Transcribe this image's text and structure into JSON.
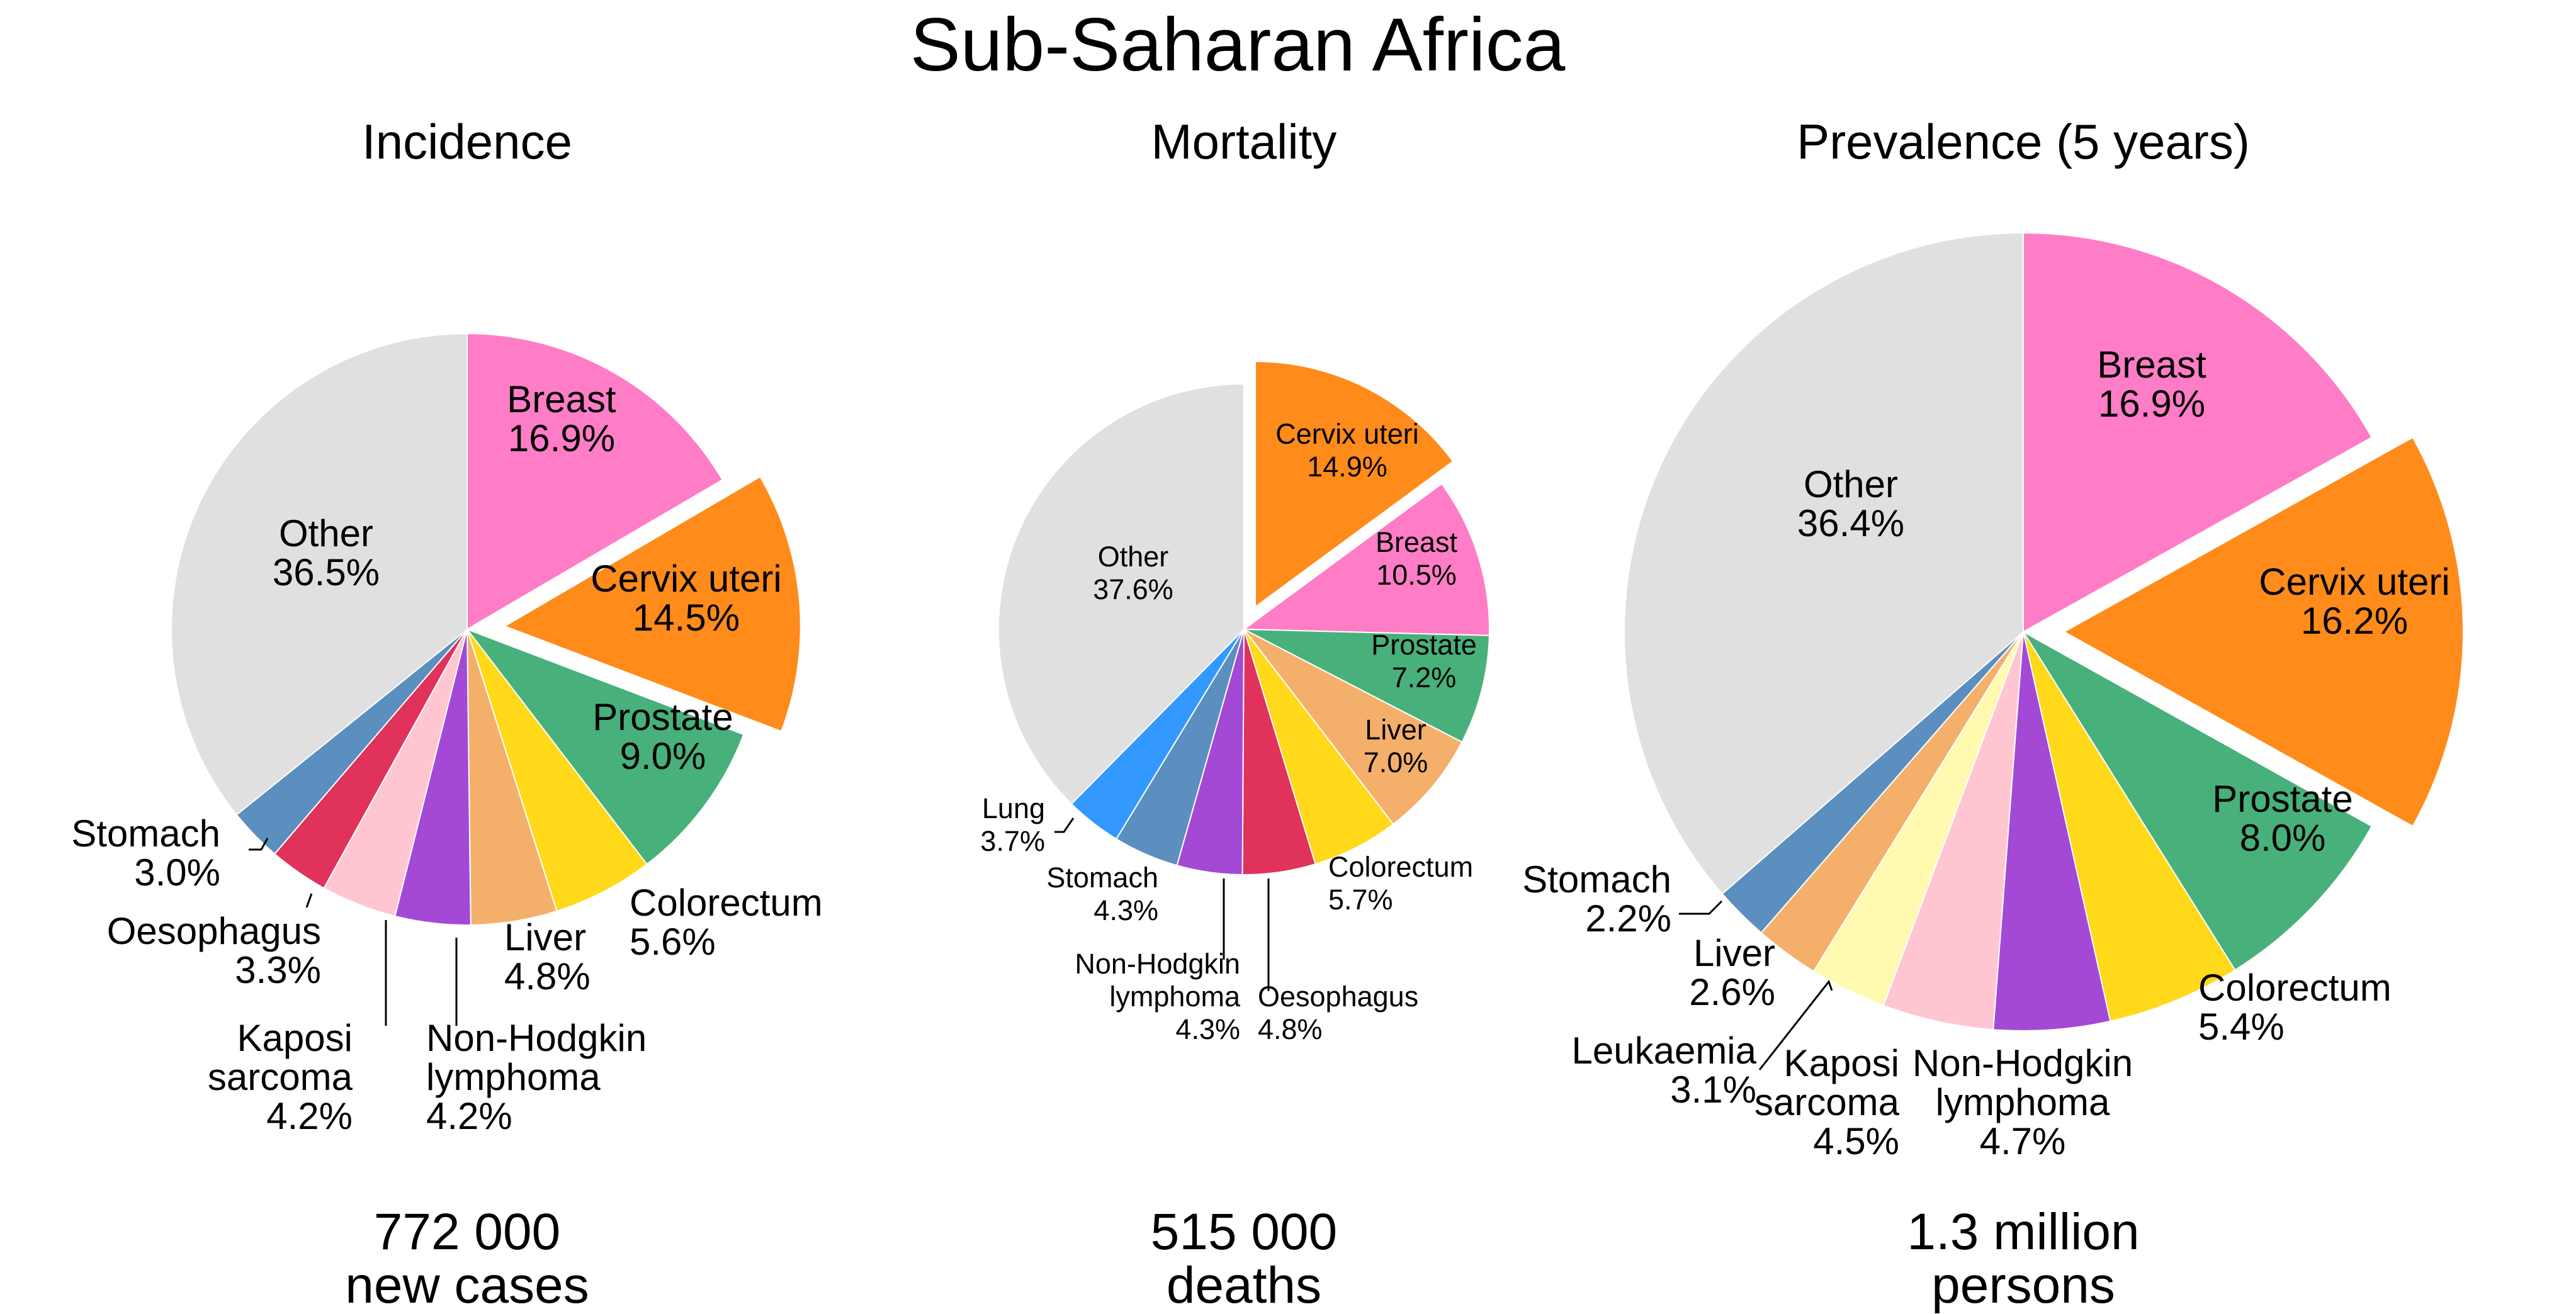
{
  "figure_title": "Sub-Saharan Africa",
  "colors": {
    "Breast": "#ff7dc6",
    "Cervix uteri": "#ff8b1b",
    "Prostate": "#48b07b",
    "Colorectum": "#ffd91a",
    "Liver": "#f4b06a",
    "Non-Hodgkin lymphoma": "#a349d6",
    "Kaposi sarcoma": "#ffc6d2",
    "Oesophagus": "#e0325a",
    "Stomach": "#5b8fbf",
    "Lung": "#3399ff",
    "Leukaemia": "#fffab0",
    "Other": "#e0e0e0"
  },
  "chart_data": [
    {
      "type": "pie",
      "title": "Incidence",
      "total_line1": "772 000",
      "total_line2": "new cases",
      "slices": [
        {
          "name": "Breast",
          "value": 16.9,
          "label": [
            "Breast",
            "16.9%"
          ]
        },
        {
          "name": "Cervix uteri",
          "value": 14.5,
          "label": [
            "Cervix uteri",
            "14.5%"
          ],
          "exploded": true
        },
        {
          "name": "Prostate",
          "value": 9.0,
          "label": [
            "Prostate",
            "9.0%"
          ]
        },
        {
          "name": "Colorectum",
          "value": 5.6,
          "label": [
            "Colorectum",
            "5.6%"
          ]
        },
        {
          "name": "Liver",
          "value": 4.8,
          "label": [
            "Liver",
            "4.8%"
          ]
        },
        {
          "name": "Non-Hodgkin lymphoma",
          "value": 4.2,
          "label": [
            "Non-Hodgkin",
            "lymphoma",
            "4.2%"
          ]
        },
        {
          "name": "Kaposi sarcoma",
          "value": 4.2,
          "label": [
            "Kaposi",
            "sarcoma",
            "4.2%"
          ]
        },
        {
          "name": "Oesophagus",
          "value": 3.3,
          "label": [
            "Oesophagus",
            "3.3%"
          ]
        },
        {
          "name": "Stomach",
          "value": 3.0,
          "label": [
            "Stomach",
            "3.0%"
          ]
        },
        {
          "name": "Other",
          "value": 36.5,
          "label": [
            "Other",
            "36.5%"
          ]
        }
      ]
    },
    {
      "type": "pie",
      "title": "Mortality",
      "total_line1": "515 000",
      "total_line2": "deaths",
      "slices": [
        {
          "name": "Cervix uteri",
          "value": 14.9,
          "label": [
            "Cervix uteri",
            "14.9%"
          ],
          "exploded": true
        },
        {
          "name": "Breast",
          "value": 10.5,
          "label": [
            "Breast",
            "10.5%"
          ]
        },
        {
          "name": "Prostate",
          "value": 7.2,
          "label": [
            "Prostate",
            "7.2%"
          ]
        },
        {
          "name": "Liver",
          "value": 7.0,
          "label": [
            "Liver",
            "7.0%"
          ]
        },
        {
          "name": "Colorectum",
          "value": 5.7,
          "label": [
            "Colorectum",
            "5.7%"
          ]
        },
        {
          "name": "Oesophagus",
          "value": 4.8,
          "label": [
            "Oesophagus",
            "4.8%"
          ]
        },
        {
          "name": "Non-Hodgkin lymphoma",
          "value": 4.3,
          "label": [
            "Non-Hodgkin",
            "lymphoma",
            "4.3%"
          ]
        },
        {
          "name": "Stomach",
          "value": 4.3,
          "label": [
            "Stomach",
            "4.3%"
          ]
        },
        {
          "name": "Lung",
          "value": 3.7,
          "label": [
            "Lung",
            "3.7%"
          ]
        },
        {
          "name": "Other",
          "value": 37.6,
          "label": [
            "Other",
            "37.6%"
          ]
        }
      ]
    },
    {
      "type": "pie",
      "title": "Prevalence (5 years)",
      "total_line1": "1.3 million",
      "total_line2": "persons",
      "slices": [
        {
          "name": "Breast",
          "value": 16.9,
          "label": [
            "Breast",
            "16.9%"
          ]
        },
        {
          "name": "Cervix uteri",
          "value": 16.2,
          "label": [
            "Cervix uteri",
            "16.2%"
          ],
          "exploded": true
        },
        {
          "name": "Prostate",
          "value": 8.0,
          "label": [
            "Prostate",
            "8.0%"
          ]
        },
        {
          "name": "Colorectum",
          "value": 5.4,
          "label": [
            "Colorectum",
            "5.4%"
          ]
        },
        {
          "name": "Non-Hodgkin lymphoma",
          "value": 4.7,
          "label": [
            "Non-Hodgkin",
            "lymphoma",
            "4.7%"
          ]
        },
        {
          "name": "Kaposi sarcoma",
          "value": 4.5,
          "label": [
            "Kaposi",
            "sarcoma",
            "4.5%"
          ]
        },
        {
          "name": "Leukaemia",
          "value": 3.1,
          "label": [
            "Leukaemia",
            "3.1%"
          ]
        },
        {
          "name": "Liver",
          "value": 2.6,
          "label": [
            "Liver",
            "2.6%"
          ]
        },
        {
          "name": "Stomach",
          "value": 2.2,
          "label": [
            "Stomach",
            "2.2%"
          ]
        },
        {
          "name": "Other",
          "value": 36.4,
          "label": [
            "Other",
            "36.4%"
          ]
        }
      ]
    }
  ]
}
